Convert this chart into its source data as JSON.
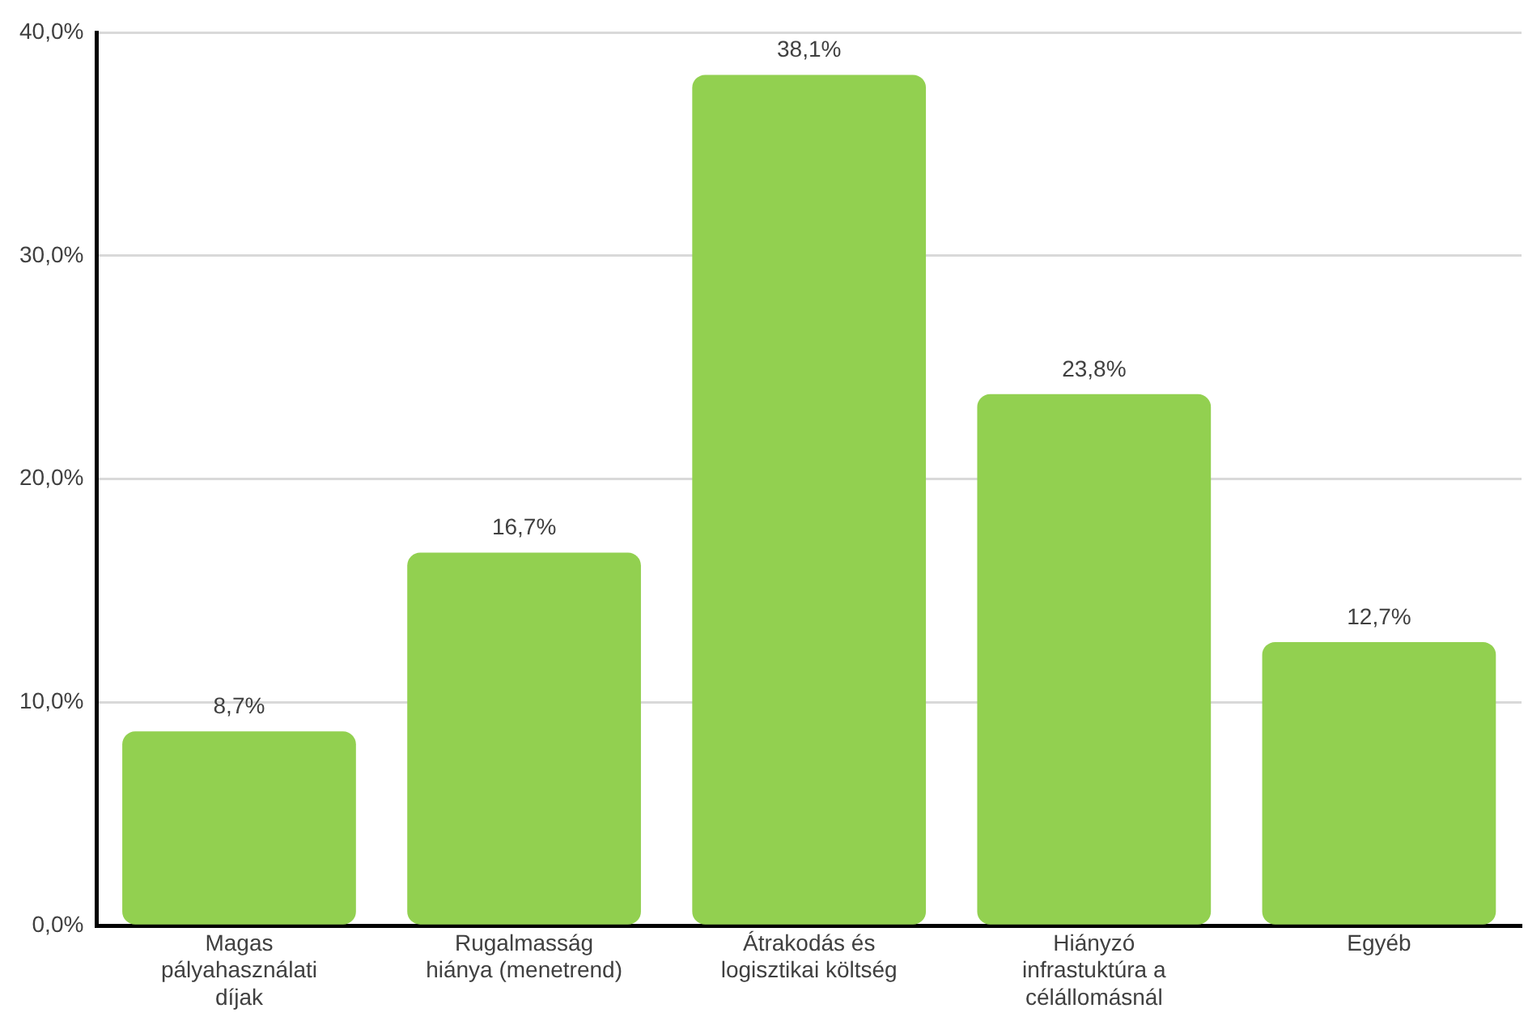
{
  "chart_data": {
    "type": "bar",
    "categories": [
      "Magas pályahasználati díjak",
      "Rugalmasság hiánya (menetrend)",
      "Átrakodás és logisztikai költség",
      "Hiányzó infrastuktúra a célállomásnál",
      "Egyéb"
    ],
    "values": [
      8.7,
      16.7,
      38.1,
      23.8,
      12.7
    ],
    "value_labels": [
      "8,7%",
      "16,7%",
      "38,1%",
      "23,8%",
      "12,7%"
    ],
    "color": "#92d050",
    "ylim": [
      0,
      40
    ],
    "yticks": [
      {
        "value": 0,
        "label": "0,0%"
      },
      {
        "value": 10,
        "label": "10,0%"
      },
      {
        "value": 20,
        "label": "20,0%"
      },
      {
        "value": 30,
        "label": "30,0%"
      },
      {
        "value": 40,
        "label": "40,0%"
      }
    ],
    "grid": "y",
    "legend": false
  }
}
